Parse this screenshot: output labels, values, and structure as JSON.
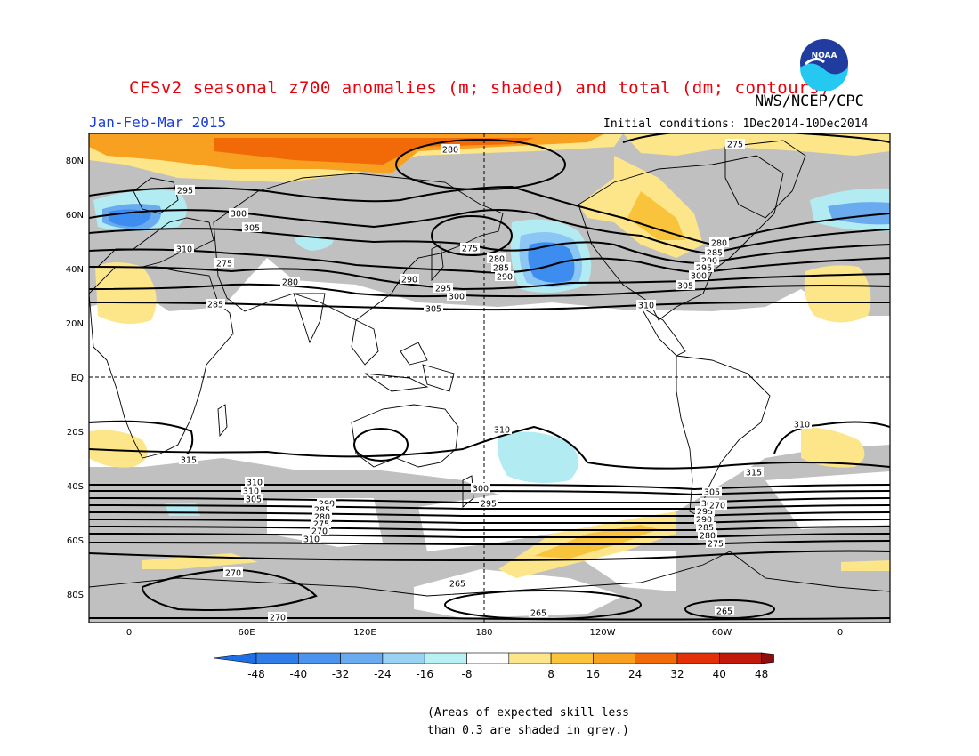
{
  "header": {
    "title": "CFSv2 seasonal z700 anomalies (m; shaded) and total (dm; contours)",
    "agency": "NWS/NCEP/CPC",
    "period": "Jan-Feb-Mar 2015",
    "initial_conditions": "Initial conditions: 1Dec2014-10Dec2014",
    "logo_text": "NOAA"
  },
  "map": {
    "projection": "equirectangular",
    "lat_labels": [
      "80N",
      "60N",
      "40N",
      "20N",
      "EQ",
      "20S",
      "40S",
      "60S",
      "80S"
    ],
    "lon_labels": [
      "0",
      "60E",
      "120E",
      "180",
      "120W",
      "60W",
      "0"
    ],
    "contour_labels": [
      "280",
      "275",
      "280",
      "285",
      "290",
      "295",
      "300",
      "305",
      "310",
      "275",
      "280",
      "285",
      "290",
      "295",
      "300",
      "305",
      "310",
      "275",
      "280",
      "285",
      "290",
      "295",
      "300",
      "305",
      "310",
      "310",
      "315",
      "315",
      "310",
      "310",
      "305",
      "300",
      "295",
      "290",
      "285",
      "280",
      "275",
      "270",
      "310",
      "305",
      "300",
      "295",
      "290",
      "285",
      "280",
      "275",
      "270",
      "265",
      "270",
      "270",
      "265",
      "265"
    ],
    "colors": {
      "skill_grey": "#c0c0c0",
      "land_outline": "#000000",
      "neg_48": "#1e6ee6",
      "neg_40": "#3d8df0",
      "neg_32": "#5aa3f2",
      "neg_24": "#8cc6f5",
      "neg_16": "#b2ecf2",
      "pos_16": "#fde68a",
      "pos_24": "#f9c43c",
      "pos_32": "#f8a020",
      "pos_40": "#f25f05",
      "pos_48": "#dc2a06"
    }
  },
  "colorbar": {
    "ticks": [
      "-48",
      "-40",
      "-32",
      "-24",
      "-16",
      "-8",
      "8",
      "16",
      "24",
      "32",
      "40",
      "48"
    ],
    "colors": [
      "#1e6ee6",
      "#2f7de8",
      "#4b93ec",
      "#6aabf0",
      "#9ad2f4",
      "#b8f0f4",
      "#ffffff",
      "#fde68a",
      "#f9c43c",
      "#f8a020",
      "#f26a08",
      "#e43008",
      "#c21a0a",
      "#8c0f0f"
    ]
  },
  "footnote": {
    "line1": "(Areas of expected skill less",
    "line2": "than 0.3 are shaded in grey.)"
  }
}
